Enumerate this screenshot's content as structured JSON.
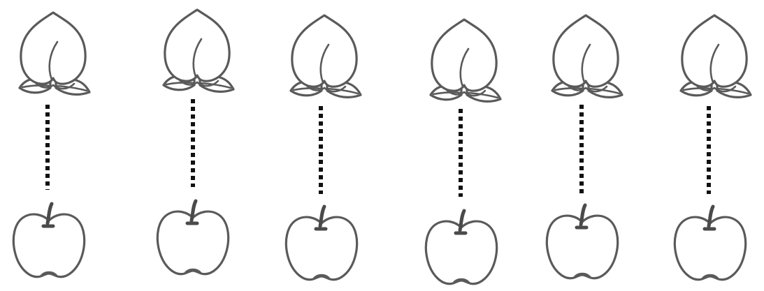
{
  "pairs": [
    {
      "top": "peach-icon",
      "bottom": "apple-icon",
      "link": "dotted-line"
    },
    {
      "top": "peach-icon",
      "bottom": "apple-icon",
      "link": "dotted-line"
    },
    {
      "top": "peach-icon",
      "bottom": "apple-icon",
      "link": "dotted-line"
    },
    {
      "top": "peach-icon",
      "bottom": "apple-icon",
      "link": "dotted-line"
    },
    {
      "top": "peach-icon",
      "bottom": "apple-icon",
      "link": "dotted-line"
    },
    {
      "top": "peach-icon",
      "bottom": "apple-icon",
      "link": "dotted-line"
    }
  ],
  "colors": {
    "outline": "#5a5a5a",
    "connector": "#111111",
    "background": "#ffffff"
  }
}
